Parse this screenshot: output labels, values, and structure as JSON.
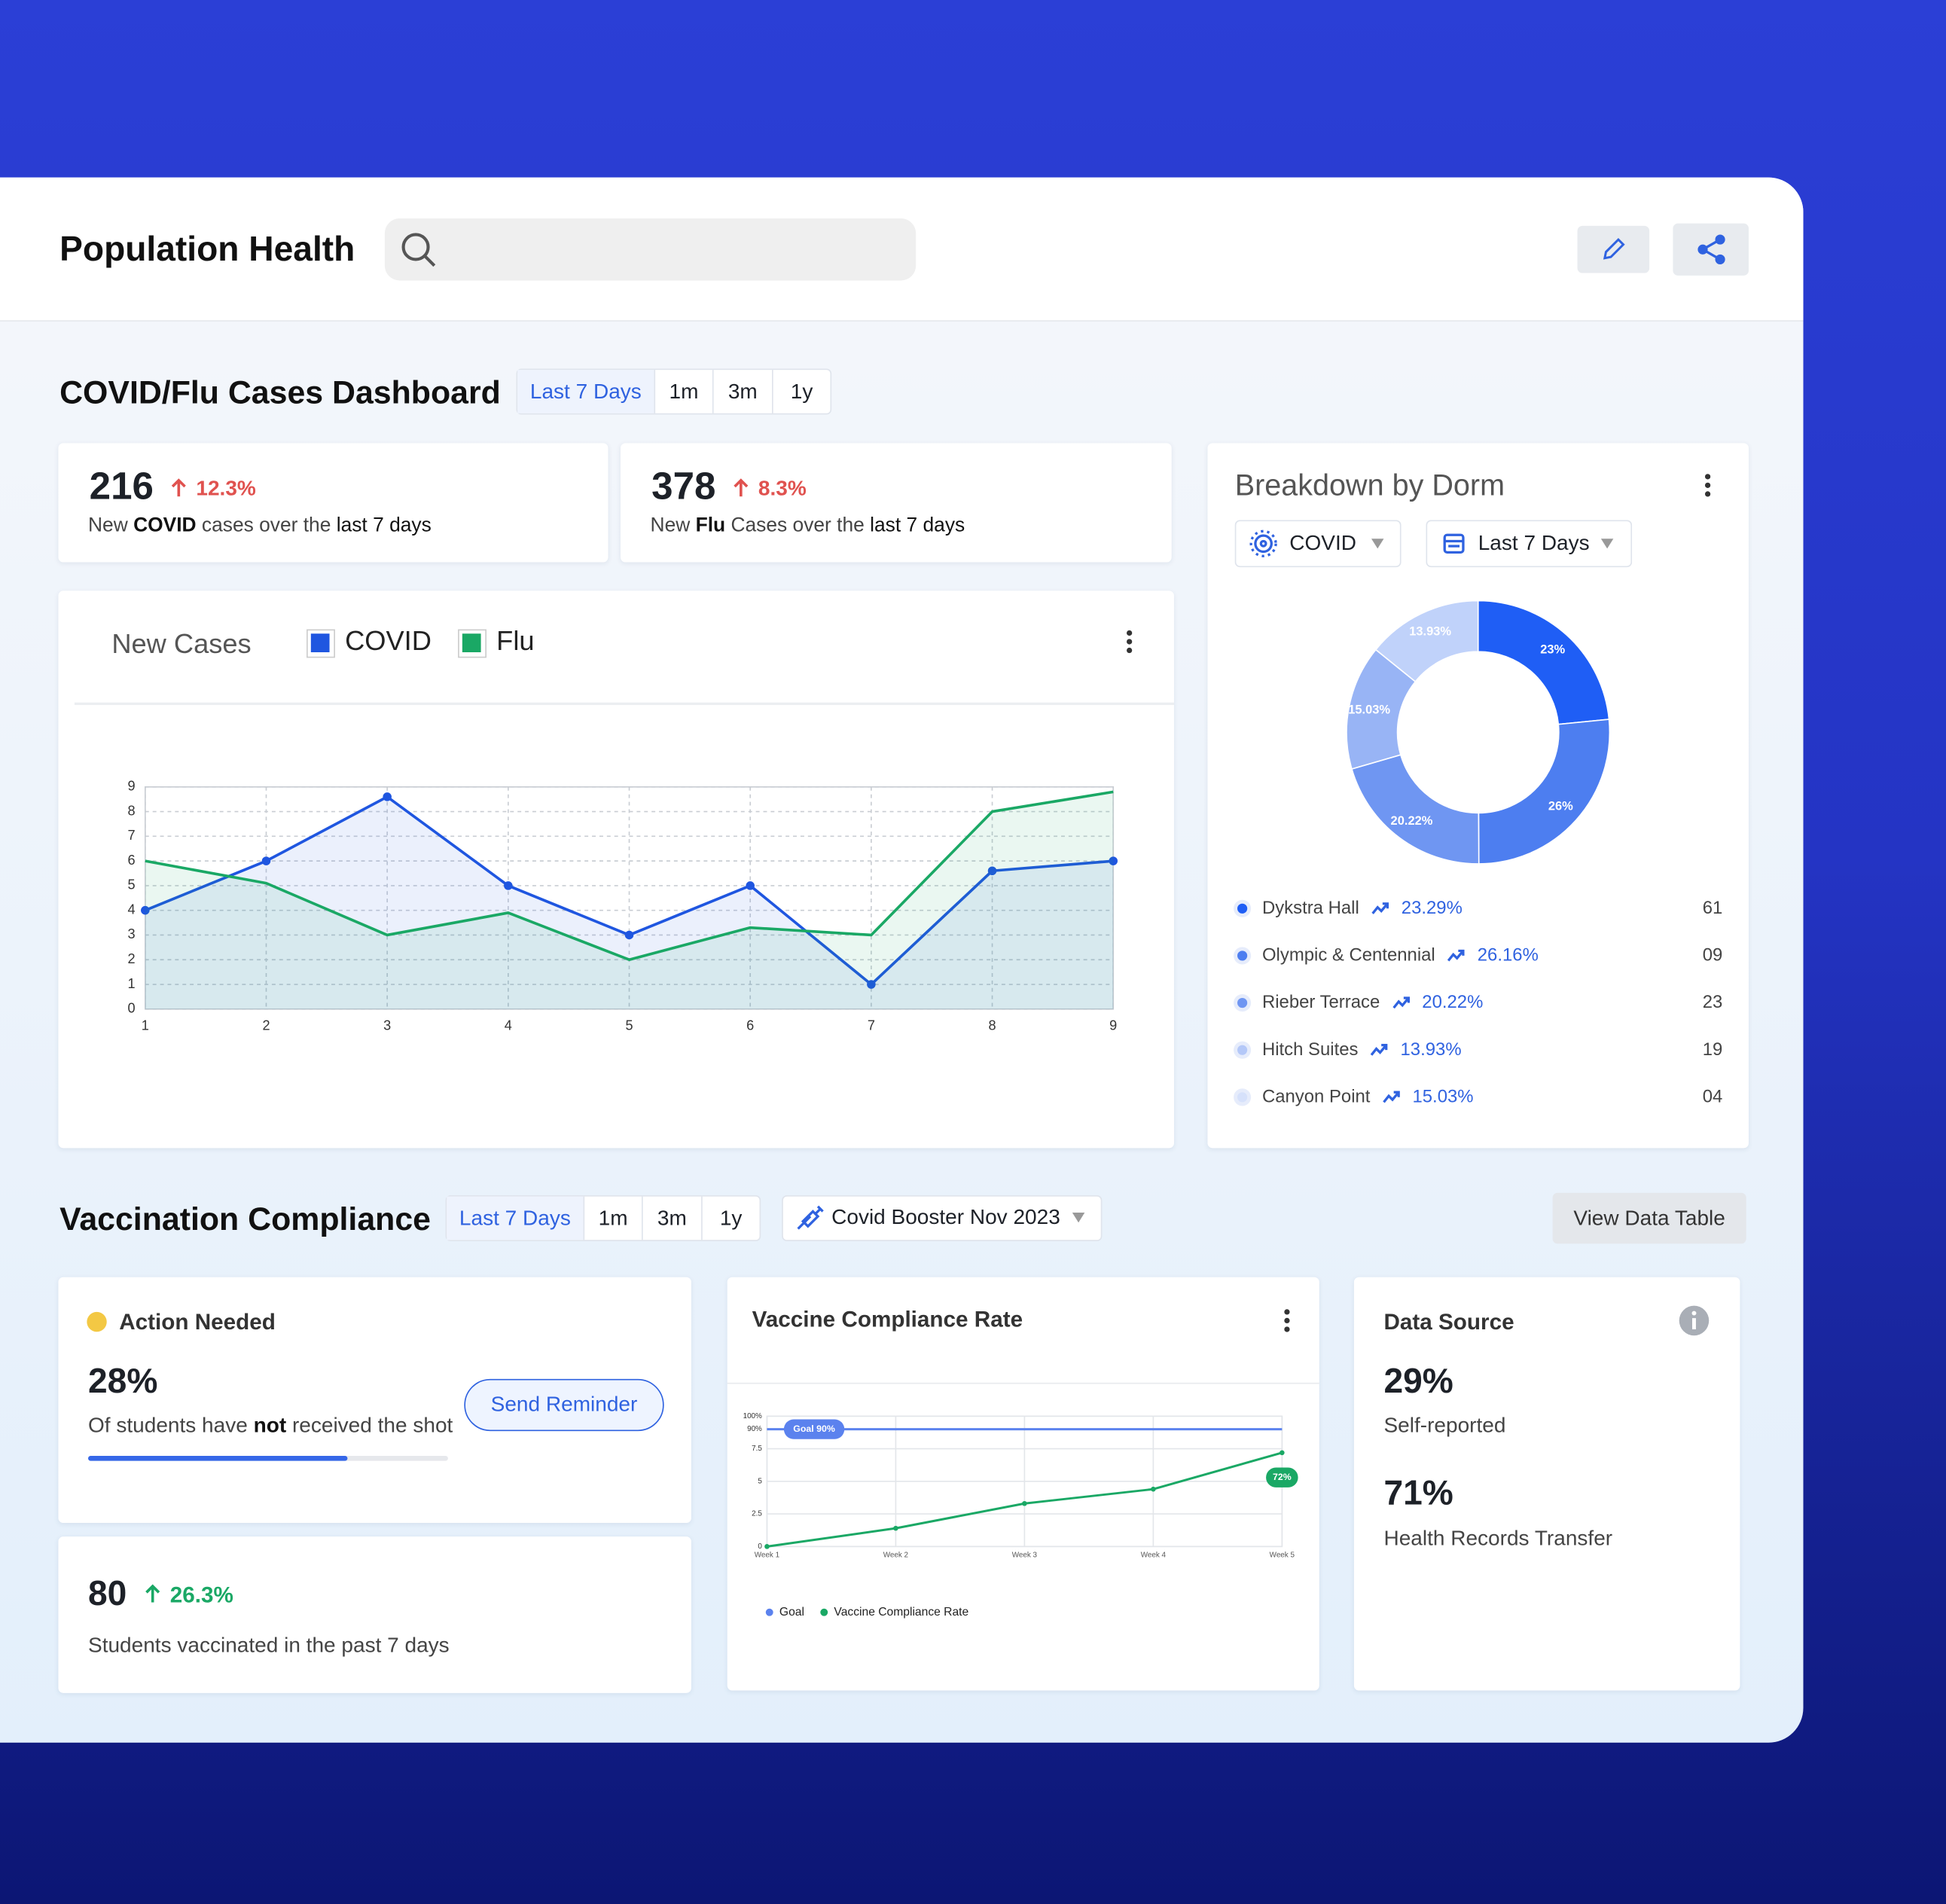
{
  "header": {
    "title": "Population Health"
  },
  "cases": {
    "title": "COVID/Flu Cases Dashboard",
    "ranges": [
      "Last 7 Days",
      "1m",
      "3m",
      "1y"
    ],
    "kpis": [
      {
        "value": 216,
        "change": "12.3%",
        "text": [
          "New ",
          "COVID",
          " cases over the ",
          "last 7 days"
        ]
      },
      {
        "value": 378,
        "change": "8.3%",
        "text": [
          "New ",
          "Flu",
          " Cases over the ",
          "last 7 days"
        ]
      }
    ]
  },
  "dorms": {
    "filters": [
      "COVID",
      "Last 7 Days"
    ],
    "rows": [
      {
        "name": "Dykstra Hall",
        "change": "23.29%",
        "count": "61",
        "color": "#1f5ef5"
      },
      {
        "name": "Olympic & Centennial",
        "change": "26.16%",
        "count": "09",
        "color": "#4d7ef0"
      },
      {
        "name": "Rieber Terrace",
        "change": "20.22%",
        "count": "23",
        "color": "#6f96f2"
      },
      {
        "name": "Hitch Suites",
        "change": "13.93%",
        "count": "19",
        "color": "#b4c8f8"
      },
      {
        "name": "Canyon Point",
        "change": "15.03%",
        "count": "04",
        "color": "#d6e1fb"
      }
    ]
  },
  "vaccination": {
    "title": "Vaccination Compliance",
    "ranges": [
      "Last 7 Days",
      "1m",
      "3m",
      "1y"
    ],
    "campaign": "Covid Booster Nov 2023",
    "view_table": "View Data Table",
    "action": {
      "status": "Action Needed",
      "value": "28%",
      "text": [
        "Of students have ",
        "not",
        " received the shot"
      ],
      "button": "Send Reminder",
      "progress": 72
    },
    "recent": {
      "value": 80,
      "change": "26.3%",
      "text": "Students vaccinated in the past 7 days"
    },
    "source": {
      "title": "Data Source",
      "items": [
        {
          "value": "29%",
          "label": "Self-reported"
        },
        {
          "value": "71%",
          "label": "Health Records Transfer"
        }
      ]
    }
  },
  "chart_data": [
    {
      "type": "line",
      "title": "New Cases",
      "x": [
        1,
        2,
        3,
        4,
        5,
        6,
        7,
        8,
        9
      ],
      "xlim": [
        1,
        9
      ],
      "xticks": [
        1,
        2,
        3,
        4,
        5,
        6,
        7,
        8,
        9
      ],
      "ylim": [
        0,
        9
      ],
      "yticks": [
        0,
        1,
        2,
        3,
        4,
        5,
        6,
        7,
        8,
        9
      ],
      "grid": true,
      "series": [
        {
          "name": "COVID",
          "color": "#1f56e0",
          "values": [
            4,
            6,
            8.6,
            5,
            3,
            5,
            1,
            5.6,
            6
          ],
          "area": true,
          "markers": true
        },
        {
          "name": "Flu",
          "color": "#1aa865",
          "values": [
            6,
            5.1,
            3,
            3.9,
            2,
            3.3,
            3,
            8,
            8.8
          ],
          "area": true,
          "markers": false
        }
      ]
    },
    {
      "type": "donut",
      "title": "Breakdown by Dorm",
      "values": [
        23,
        26,
        20.22,
        15.03,
        13.93
      ],
      "value_labels": [
        "23%",
        "26%",
        "20.22%",
        "15.03%",
        "13.93%"
      ],
      "colors": [
        "#1f5ef5",
        "#4d7ef0",
        "#6f96f2",
        "#98b4f5",
        "#c0d2fa"
      ]
    },
    {
      "type": "line",
      "title": "Vaccine Compliance Rate",
      "categories": [
        "Week 1",
        "Week 2",
        "Week 3",
        "Week 4",
        "Week 5"
      ],
      "ylim": [
        0,
        100
      ],
      "yticks": [
        0,
        {
          "value": 25,
          "label": "2.5"
        },
        {
          "value": 50,
          "label": "5"
        },
        {
          "value": 75,
          "label": "7.5"
        },
        {
          "value": 90,
          "label": "90%"
        },
        {
          "value": 100,
          "label": "100%"
        }
      ],
      "grid": true,
      "series": [
        {
          "name": "Goal",
          "color": "#5b82ee",
          "values": [
            90,
            90,
            90,
            90,
            90
          ],
          "value_labels": [
            "Goal 90%",
            null,
            null,
            null,
            null
          ],
          "markers": false
        },
        {
          "name": "Vaccine Compliance Rate",
          "color": "#1aa865",
          "values": [
            0,
            14,
            33,
            44,
            72
          ],
          "value_labels": [
            null,
            null,
            null,
            null,
            "72%"
          ],
          "markers": true
        }
      ]
    }
  ]
}
